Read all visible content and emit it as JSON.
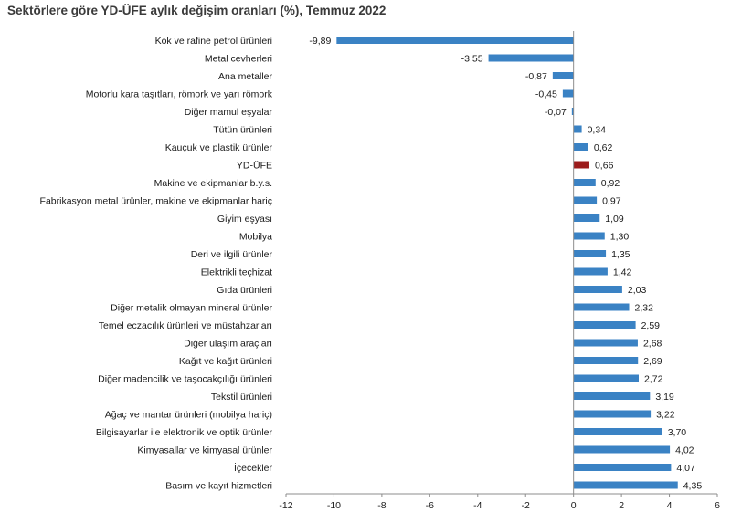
{
  "colors": {
    "bar": "#3a82c4",
    "highlight": "#9c1c1c",
    "axis": "#8c8c8c"
  },
  "chart_data": {
    "type": "bar",
    "orientation": "horizontal",
    "title": "Sektörlere göre YD-ÜFE aylık değişim oranları (%), Temmuz 2022",
    "highlight_category": "YD-ÜFE",
    "xlim": [
      -12,
      6
    ],
    "xticks": [
      "-12",
      "-10",
      "-8",
      "-6",
      "-4",
      "-2",
      "0",
      "2",
      "4",
      "6"
    ],
    "categories": [
      "Kok ve rafine petrol ürünleri",
      "Metal cevherleri",
      "Ana metaller",
      "Motorlu kara taşıtları, römork ve yarı römork",
      "Diğer mamul eşyalar",
      "Tütün ürünleri",
      "Kauçuk ve plastik ürünler",
      "YD-ÜFE",
      "Makine ve ekipmanlar b.y.s.",
      "Fabrikasyon metal ürünler, makine ve ekipmanlar hariç",
      "Giyim eşyası",
      "Mobilya",
      "Deri ve ilgili ürünler",
      "Elektrikli teçhizat",
      "Gıda ürünleri",
      "Diğer metalik olmayan mineral ürünler",
      "Temel eczacılık ürünleri ve müstahzarları",
      "Diğer ulaşım araçları",
      "Kağıt ve kağıt ürünleri",
      "Diğer madencilik ve taşocakçılığı ürünleri",
      "Tekstil ürünleri",
      "Ağaç ve mantar ürünleri (mobilya hariç)",
      "Bilgisayarlar ile elektronik ve optik ürünler",
      "Kimyasallar ve kimyasal ürünler",
      "İçecekler",
      "Basım ve kayıt hizmetleri"
    ],
    "values": [
      -9.89,
      -3.55,
      -0.87,
      -0.45,
      -0.07,
      0.34,
      0.62,
      0.66,
      0.92,
      0.97,
      1.09,
      1.3,
      1.35,
      1.42,
      2.03,
      2.32,
      2.59,
      2.68,
      2.69,
      2.72,
      3.19,
      3.22,
      3.7,
      4.02,
      4.07,
      4.35
    ],
    "value_labels": [
      "-9,89",
      "-3,55",
      "-0,87",
      "-0,45",
      "-0,07",
      "0,34",
      "0,62",
      "0,66",
      "0,92",
      "0,97",
      "1,09",
      "1,30",
      "1,35",
      "1,42",
      "2,03",
      "2,32",
      "2,59",
      "2,68",
      "2,69",
      "2,72",
      "3,19",
      "3,22",
      "3,70",
      "4,02",
      "4,07",
      "4,35"
    ]
  }
}
